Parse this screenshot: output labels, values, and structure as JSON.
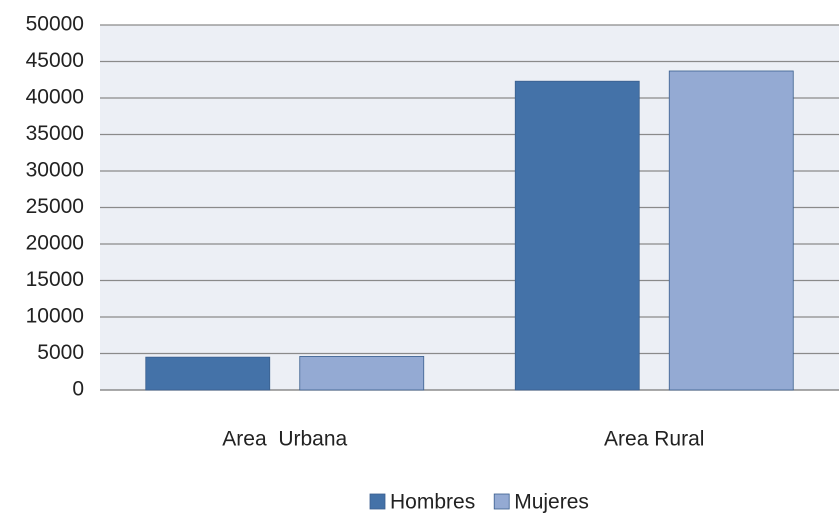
{
  "chart_data": {
    "type": "bar",
    "categories": [
      "Area  Urbana",
      "Area Rural"
    ],
    "series": [
      {
        "name": "Hombres",
        "color": "#4472a8",
        "values": [
          4500,
          42300
        ]
      },
      {
        "name": "Mujeres",
        "color": "#94aad3",
        "values": [
          4600,
          43700
        ]
      }
    ],
    "ylim": [
      0,
      50000
    ],
    "yticks": [
      0,
      5000,
      10000,
      15000,
      20000,
      25000,
      30000,
      35000,
      40000,
      45000,
      50000
    ],
    "grid": true,
    "legend": "bottom"
  }
}
